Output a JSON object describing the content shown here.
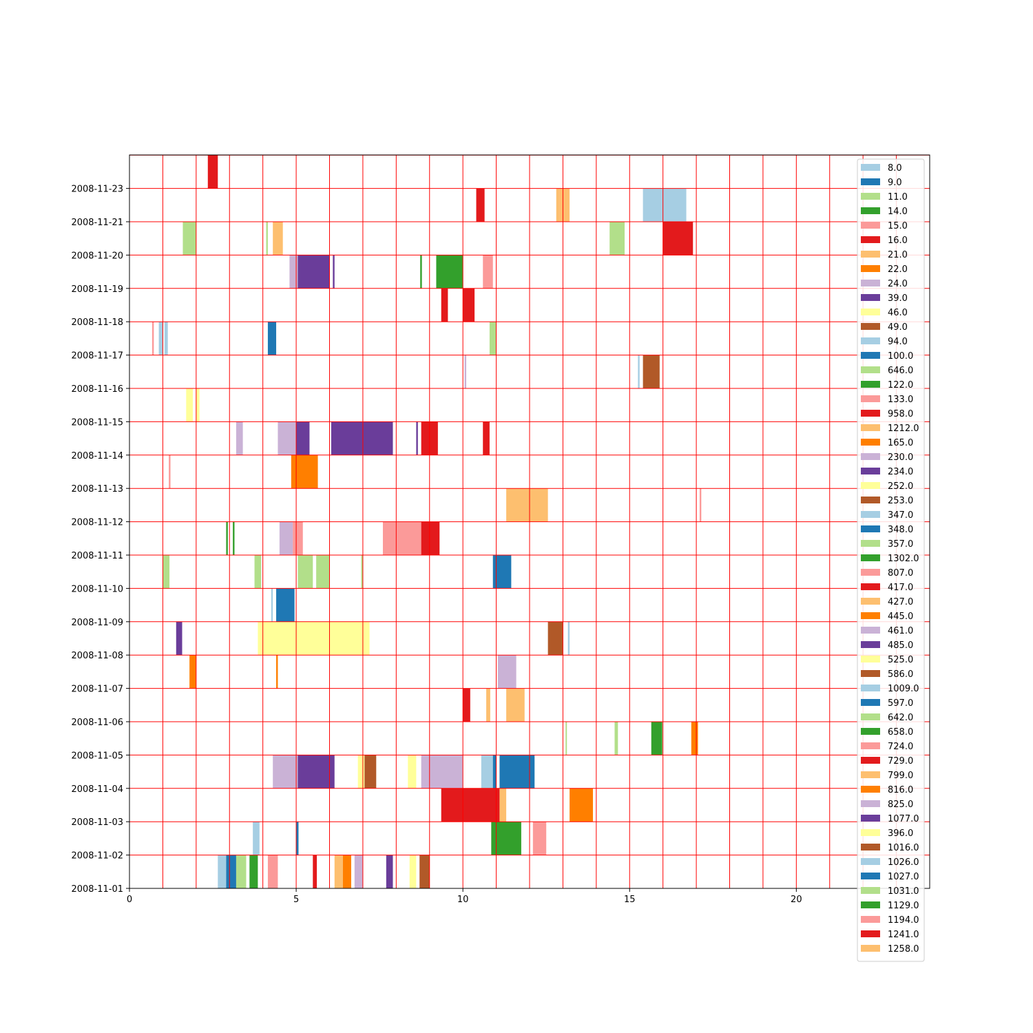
{
  "chart_data": {
    "type": "bar",
    "orientation": "horizontal-timeline",
    "title": "",
    "xlabel": "",
    "ylabel": "",
    "xlim": [
      0,
      24
    ],
    "x_ticks": [
      0,
      5,
      10,
      15,
      20
    ],
    "x_tick_labels": [
      "0",
      "5",
      "10",
      "15",
      "20"
    ],
    "y_ticks": [
      "2008-11-01",
      "2008-11-02",
      "2008-11-03",
      "2008-11-04",
      "2008-11-05",
      "2008-11-06",
      "2008-11-07",
      "2008-11-08",
      "2008-11-09",
      "2008-11-10",
      "2008-11-11",
      "2008-11-12",
      "2008-11-13",
      "2008-11-14",
      "2008-11-15",
      "2008-11-16",
      "2008-11-17",
      "2008-11-18",
      "2008-11-19",
      "2008-11-20",
      "2008-11-21",
      "2008-11-23"
    ],
    "ylim": [
      "2008-11-01",
      "2008-11-23 (+1 row)"
    ],
    "grid": true,
    "grid_color": "#ff0000",
    "legend_position": "right",
    "legend": [
      {
        "label": "8.0",
        "color": "#a6cee3"
      },
      {
        "label": "9.0",
        "color": "#1f78b4"
      },
      {
        "label": "11.0",
        "color": "#b2df8a"
      },
      {
        "label": "14.0",
        "color": "#33a02c"
      },
      {
        "label": "15.0",
        "color": "#fb9a99"
      },
      {
        "label": "16.0",
        "color": "#e31a1c"
      },
      {
        "label": "21.0",
        "color": "#fdbf6f"
      },
      {
        "label": "22.0",
        "color": "#ff7f00"
      },
      {
        "label": "24.0",
        "color": "#cab2d6"
      },
      {
        "label": "39.0",
        "color": "#6a3d9a"
      },
      {
        "label": "46.0",
        "color": "#ffff99"
      },
      {
        "label": "49.0",
        "color": "#b15928"
      },
      {
        "label": "94.0",
        "color": "#a6cee3"
      },
      {
        "label": "100.0",
        "color": "#1f78b4"
      },
      {
        "label": "646.0",
        "color": "#b2df8a"
      },
      {
        "label": "122.0",
        "color": "#33a02c"
      },
      {
        "label": "133.0",
        "color": "#fb9a99"
      },
      {
        "label": "958.0",
        "color": "#e31a1c"
      },
      {
        "label": "1212.0",
        "color": "#fdbf6f"
      },
      {
        "label": "165.0",
        "color": "#ff7f00"
      },
      {
        "label": "230.0",
        "color": "#cab2d6"
      },
      {
        "label": "234.0",
        "color": "#6a3d9a"
      },
      {
        "label": "252.0",
        "color": "#ffff99"
      },
      {
        "label": "253.0",
        "color": "#b15928"
      },
      {
        "label": "347.0",
        "color": "#a6cee3"
      },
      {
        "label": "348.0",
        "color": "#1f78b4"
      },
      {
        "label": "357.0",
        "color": "#b2df8a"
      },
      {
        "label": "1302.0",
        "color": "#33a02c"
      },
      {
        "label": "807.0",
        "color": "#fb9a99"
      },
      {
        "label": "417.0",
        "color": "#e31a1c"
      },
      {
        "label": "427.0",
        "color": "#fdbf6f"
      },
      {
        "label": "445.0",
        "color": "#ff7f00"
      },
      {
        "label": "461.0",
        "color": "#cab2d6"
      },
      {
        "label": "485.0",
        "color": "#6a3d9a"
      },
      {
        "label": "525.0",
        "color": "#ffff99"
      },
      {
        "label": "586.0",
        "color": "#b15928"
      },
      {
        "label": "1009.0",
        "color": "#a6cee3"
      },
      {
        "label": "597.0",
        "color": "#1f78b4"
      },
      {
        "label": "642.0",
        "color": "#b2df8a"
      },
      {
        "label": "658.0",
        "color": "#33a02c"
      },
      {
        "label": "724.0",
        "color": "#fb9a99"
      },
      {
        "label": "729.0",
        "color": "#e31a1c"
      },
      {
        "label": "799.0",
        "color": "#fdbf6f"
      },
      {
        "label": "816.0",
        "color": "#ff7f00"
      },
      {
        "label": "825.0",
        "color": "#cab2d6"
      },
      {
        "label": "1077.0",
        "color": "#6a3d9a"
      },
      {
        "label": "396.0",
        "color": "#ffff99"
      },
      {
        "label": "1016.0",
        "color": "#b15928"
      },
      {
        "label": "1026.0",
        "color": "#a6cee3"
      },
      {
        "label": "1027.0",
        "color": "#1f78b4"
      },
      {
        "label": "1031.0",
        "color": "#b2df8a"
      },
      {
        "label": "1129.0",
        "color": "#33a02c"
      },
      {
        "label": "1194.0",
        "color": "#fb9a99"
      },
      {
        "label": "1241.0",
        "color": "#e31a1c"
      },
      {
        "label": "1258.0",
        "color": "#fdbf6f"
      }
    ],
    "segments": [
      {
        "row": 0,
        "start": 2.65,
        "end": 2.9,
        "color": "#a6cee3"
      },
      {
        "row": 0,
        "start": 2.9,
        "end": 3.2,
        "color": "#1f78b4"
      },
      {
        "row": 0,
        "start": 3.2,
        "end": 3.5,
        "color": "#b2df8a"
      },
      {
        "row": 0,
        "start": 3.6,
        "end": 3.85,
        "color": "#33a02c"
      },
      {
        "row": 0,
        "start": 4.15,
        "end": 4.45,
        "color": "#fb9a99"
      },
      {
        "row": 0,
        "start": 5.5,
        "end": 5.62,
        "color": "#e31a1c"
      },
      {
        "row": 0,
        "start": 6.15,
        "end": 6.4,
        "color": "#fdbf6f"
      },
      {
        "row": 0,
        "start": 6.4,
        "end": 6.65,
        "color": "#ff7f00"
      },
      {
        "row": 0,
        "start": 6.75,
        "end": 7.0,
        "color": "#cab2d6"
      },
      {
        "row": 0,
        "start": 7.7,
        "end": 7.9,
        "color": "#6a3d9a"
      },
      {
        "row": 0,
        "start": 8.4,
        "end": 8.6,
        "color": "#ffff99"
      },
      {
        "row": 0,
        "start": 8.7,
        "end": 9.0,
        "color": "#b15928"
      },
      {
        "row": 1,
        "start": 3.7,
        "end": 3.9,
        "color": "#a6cee3"
      },
      {
        "row": 1,
        "start": 5.0,
        "end": 5.07,
        "color": "#1f78b4"
      },
      {
        "row": 1,
        "start": 10.85,
        "end": 11.75,
        "color": "#33a02c"
      },
      {
        "row": 1,
        "start": 12.1,
        "end": 12.5,
        "color": "#fb9a99"
      },
      {
        "row": 2,
        "start": 9.35,
        "end": 11.1,
        "color": "#e31a1c"
      },
      {
        "row": 2,
        "start": 11.1,
        "end": 11.3,
        "color": "#fdbf6f"
      },
      {
        "row": 2,
        "start": 13.2,
        "end": 13.9,
        "color": "#ff7f00"
      },
      {
        "row": 3,
        "start": 4.3,
        "end": 5.05,
        "color": "#cab2d6"
      },
      {
        "row": 3,
        "start": 5.05,
        "end": 6.15,
        "color": "#6a3d9a"
      },
      {
        "row": 3,
        "start": 6.85,
        "end": 7.05,
        "color": "#ffff99"
      },
      {
        "row": 3,
        "start": 7.05,
        "end": 7.4,
        "color": "#b15928"
      },
      {
        "row": 3,
        "start": 8.35,
        "end": 8.6,
        "color": "#ffff99"
      },
      {
        "row": 3,
        "start": 8.75,
        "end": 9.0,
        "color": "#cab2d6"
      },
      {
        "row": 3,
        "start": 9.0,
        "end": 10.0,
        "color": "#cab2d6"
      },
      {
        "row": 3,
        "start": 10.55,
        "end": 10.9,
        "color": "#a6cee3"
      },
      {
        "row": 3,
        "start": 10.9,
        "end": 11.0,
        "color": "#1f78b4"
      },
      {
        "row": 3,
        "start": 11.1,
        "end": 12.15,
        "color": "#1f78b4"
      },
      {
        "row": 4,
        "start": 13.08,
        "end": 13.12,
        "color": "#b2df8a"
      },
      {
        "row": 4,
        "start": 14.55,
        "end": 14.65,
        "color": "#b2df8a"
      },
      {
        "row": 4,
        "start": 15.65,
        "end": 15.98,
        "color": "#33a02c"
      },
      {
        "row": 4,
        "start": 16.85,
        "end": 17.05,
        "color": "#ff7f00"
      },
      {
        "row": 5,
        "start": 10.0,
        "end": 10.22,
        "color": "#e31a1c"
      },
      {
        "row": 5,
        "start": 10.7,
        "end": 10.82,
        "color": "#fdbf6f"
      },
      {
        "row": 5,
        "start": 11.3,
        "end": 11.85,
        "color": "#fdbf6f"
      },
      {
        "row": 6,
        "start": 1.8,
        "end": 2.0,
        "color": "#ff7f00"
      },
      {
        "row": 6,
        "start": 4.4,
        "end": 4.45,
        "color": "#ff7f00"
      },
      {
        "row": 6,
        "start": 11.05,
        "end": 11.6,
        "color": "#cab2d6"
      },
      {
        "row": 7,
        "start": 1.4,
        "end": 1.58,
        "color": "#6a3d9a"
      },
      {
        "row": 7,
        "start": 3.85,
        "end": 7.2,
        "color": "#ffff99"
      },
      {
        "row": 7,
        "start": 12.55,
        "end": 13.0,
        "color": "#b15928"
      },
      {
        "row": 7,
        "start": 13.15,
        "end": 13.2,
        "color": "#a6cee3"
      },
      {
        "row": 8,
        "start": 4.25,
        "end": 4.3,
        "color": "#a6cee3"
      },
      {
        "row": 8,
        "start": 4.4,
        "end": 4.95,
        "color": "#1f78b4"
      },
      {
        "row": 9,
        "start": 1.0,
        "end": 1.2,
        "color": "#b2df8a"
      },
      {
        "row": 9,
        "start": 3.75,
        "end": 3.95,
        "color": "#b2df8a"
      },
      {
        "row": 9,
        "start": 5.05,
        "end": 5.5,
        "color": "#b2df8a"
      },
      {
        "row": 9,
        "start": 5.6,
        "end": 6.0,
        "color": "#b2df8a"
      },
      {
        "row": 9,
        "start": 6.95,
        "end": 7.0,
        "color": "#b2df8a"
      },
      {
        "row": 9,
        "start": 10.9,
        "end": 11.45,
        "color": "#1f78b4"
      },
      {
        "row": 10,
        "start": 2.9,
        "end": 2.95,
        "color": "#33a02c"
      },
      {
        "row": 10,
        "start": 3.1,
        "end": 3.15,
        "color": "#33a02c"
      },
      {
        "row": 10,
        "start": 4.5,
        "end": 4.9,
        "color": "#cab2d6"
      },
      {
        "row": 10,
        "start": 4.9,
        "end": 5.2,
        "color": "#fb9a99"
      },
      {
        "row": 10,
        "start": 7.6,
        "end": 8.75,
        "color": "#fb9a99"
      },
      {
        "row": 10,
        "start": 8.75,
        "end": 9.3,
        "color": "#e31a1c"
      },
      {
        "row": 11,
        "start": 11.3,
        "end": 12.55,
        "color": "#fdbf6f"
      },
      {
        "row": 11,
        "start": 17.1,
        "end": 17.15,
        "color": "#fb9a99"
      },
      {
        "row": 12,
        "start": 1.18,
        "end": 1.23,
        "color": "#fb9a99"
      },
      {
        "row": 12,
        "start": 4.85,
        "end": 5.65,
        "color": "#ff7f00"
      },
      {
        "row": 13,
        "start": 3.2,
        "end": 3.4,
        "color": "#cab2d6"
      },
      {
        "row": 13,
        "start": 4.45,
        "end": 5.0,
        "color": "#cab2d6"
      },
      {
        "row": 13,
        "start": 5.0,
        "end": 5.4,
        "color": "#6a3d9a"
      },
      {
        "row": 13,
        "start": 6.05,
        "end": 7.9,
        "color": "#6a3d9a"
      },
      {
        "row": 13,
        "start": 8.6,
        "end": 8.65,
        "color": "#6a3d9a"
      },
      {
        "row": 13,
        "start": 8.75,
        "end": 9.25,
        "color": "#e31a1c"
      },
      {
        "row": 13,
        "start": 10.6,
        "end": 10.8,
        "color": "#e31a1c"
      },
      {
        "row": 14,
        "start": 1.7,
        "end": 1.9,
        "color": "#ffff99"
      },
      {
        "row": 14,
        "start": 2.0,
        "end": 2.1,
        "color": "#ffff99"
      },
      {
        "row": 15,
        "start": 10.05,
        "end": 10.1,
        "color": "#cab2d6"
      },
      {
        "row": 15,
        "start": 15.25,
        "end": 15.3,
        "color": "#a6cee3"
      },
      {
        "row": 15,
        "start": 15.4,
        "end": 15.9,
        "color": "#b15928"
      },
      {
        "row": 16,
        "start": 0.68,
        "end": 0.73,
        "color": "#fb9a99"
      },
      {
        "row": 16,
        "start": 0.88,
        "end": 1.0,
        "color": "#a6cee3"
      },
      {
        "row": 16,
        "start": 1.05,
        "end": 1.15,
        "color": "#a6cee3"
      },
      {
        "row": 16,
        "start": 4.15,
        "end": 4.4,
        "color": "#1f78b4"
      },
      {
        "row": 16,
        "start": 10.8,
        "end": 11.0,
        "color": "#b2df8a"
      },
      {
        "row": 17,
        "start": 9.35,
        "end": 9.55,
        "color": "#e31a1c"
      },
      {
        "row": 17,
        "start": 10.0,
        "end": 10.35,
        "color": "#e31a1c"
      },
      {
        "row": 18,
        "start": 4.8,
        "end": 5.05,
        "color": "#cab2d6"
      },
      {
        "row": 18,
        "start": 5.05,
        "end": 6.0,
        "color": "#6a3d9a"
      },
      {
        "row": 18,
        "start": 6.1,
        "end": 6.15,
        "color": "#6a3d9a"
      },
      {
        "row": 18,
        "start": 8.72,
        "end": 8.77,
        "color": "#33a02c"
      },
      {
        "row": 18,
        "start": 9.2,
        "end": 10.0,
        "color": "#33a02c"
      },
      {
        "row": 18,
        "start": 10.6,
        "end": 10.9,
        "color": "#fb9a99"
      },
      {
        "row": 19,
        "start": 1.6,
        "end": 2.0,
        "color": "#b2df8a"
      },
      {
        "row": 19,
        "start": 4.1,
        "end": 4.15,
        "color": "#b2df8a"
      },
      {
        "row": 19,
        "start": 4.3,
        "end": 4.6,
        "color": "#fdbf6f"
      },
      {
        "row": 19,
        "start": 14.4,
        "end": 14.85,
        "color": "#b2df8a"
      },
      {
        "row": 19,
        "start": 16.0,
        "end": 16.9,
        "color": "#e31a1c"
      },
      {
        "row": 20,
        "start": 10.4,
        "end": 10.65,
        "color": "#e31a1c"
      },
      {
        "row": 20,
        "start": 12.8,
        "end": 12.9,
        "color": "#fdbf6f"
      },
      {
        "row": 20,
        "start": 12.9,
        "end": 13.2,
        "color": "#fdbf6f"
      },
      {
        "row": 20,
        "start": 15.4,
        "end": 16.7,
        "color": "#a6cee3"
      },
      {
        "row": 21,
        "start": 2.35,
        "end": 2.65,
        "color": "#e31a1c"
      }
    ]
  }
}
